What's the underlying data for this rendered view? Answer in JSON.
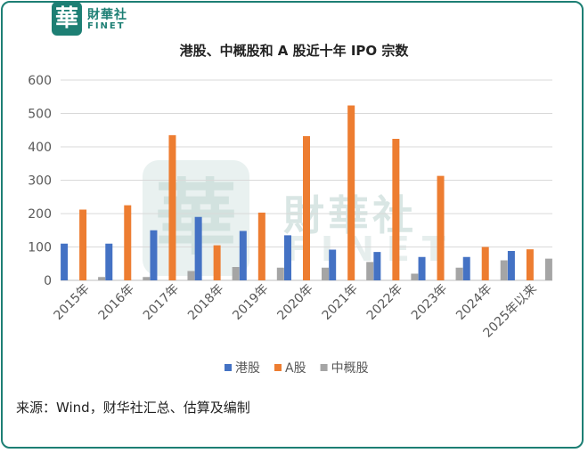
{
  "brand": {
    "logo_glyph": "華",
    "name_cn": "財華社",
    "name_en": "FINET",
    "color": "#1d7f74"
  },
  "chart_data": {
    "type": "bar",
    "title": "港股、中概股和 A 股近十年 IPO 宗数",
    "categories": [
      "2015年",
      "2016年",
      "2017年",
      "2018年",
      "2019年",
      "2020年",
      "2021年",
      "2022年",
      "2023年",
      "2024年",
      "2025年以来"
    ],
    "series": [
      {
        "name": "港股",
        "color": "#4472c4",
        "values": [
          110,
          110,
          150,
          190,
          148,
          135,
          92,
          85,
          70,
          70,
          88
        ]
      },
      {
        "name": "A股",
        "color": "#ed7d31",
        "values": [
          212,
          225,
          435,
          105,
          203,
          432,
          524,
          424,
          313,
          100,
          93
        ]
      },
      {
        "name": "中概股",
        "color": "#a5a5a5",
        "values": [
          10,
          10,
          28,
          40,
          38,
          38,
          55,
          20,
          38,
          60,
          65
        ]
      }
    ],
    "ylim": [
      0,
      600
    ],
    "yticks": [
      0,
      100,
      200,
      300,
      400,
      500,
      600
    ],
    "grid": true,
    "legend": "bottom"
  },
  "source_note": "来源：Wind，财华社汇总、估算及编制"
}
